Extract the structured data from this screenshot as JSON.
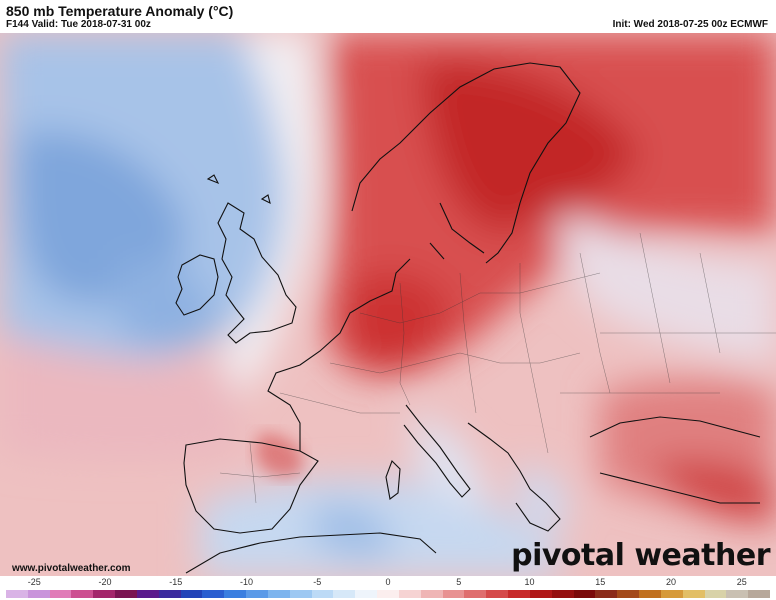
{
  "header": {
    "title": "850 mb Temperature Anomaly (°C)",
    "valid": "F144 Valid: Tue 2018-07-31 00z",
    "init": "Init: Wed 2018-07-25 00z ECMWF"
  },
  "footer": {
    "site": "www.pivotalweather.com",
    "logo": "pivotal weather"
  },
  "colorbar": {
    "ticks": [
      "-25",
      "-20",
      "-15",
      "-10",
      "-5",
      "0",
      "5",
      "10",
      "15",
      "20",
      "25"
    ],
    "range": [
      -27,
      27
    ],
    "colors": [
      "#d9b3e6",
      "#c994db",
      "#e07bb8",
      "#cc4f91",
      "#a3266b",
      "#7a1452",
      "#5a1a8c",
      "#3b2a9e",
      "#2244b8",
      "#2a5fd0",
      "#3a7fe0",
      "#5a9ae8",
      "#7cb4ee",
      "#9dc8f2",
      "#bcdaf6",
      "#d6e8f8",
      "#eef4fb",
      "#fbeeee",
      "#f6d3d3",
      "#efb5b5",
      "#e89292",
      "#df6e6e",
      "#d54a4a",
      "#c72a2a",
      "#b01818",
      "#951010",
      "#7a0a0a",
      "#8a2b1a",
      "#a34a1a",
      "#c0701f",
      "#d69a3a",
      "#e2bf66",
      "#d8d2a8",
      "#c9c0b2",
      "#b7a89a"
    ]
  },
  "map": {
    "description_colors": {
      "cold": "#a9c6ea",
      "cool": "#cfe0f3",
      "neutral": "#f3eef0",
      "warm": "#eeb3b3",
      "hot": "#dd5a5a",
      "veryhot": "#c42525"
    }
  }
}
